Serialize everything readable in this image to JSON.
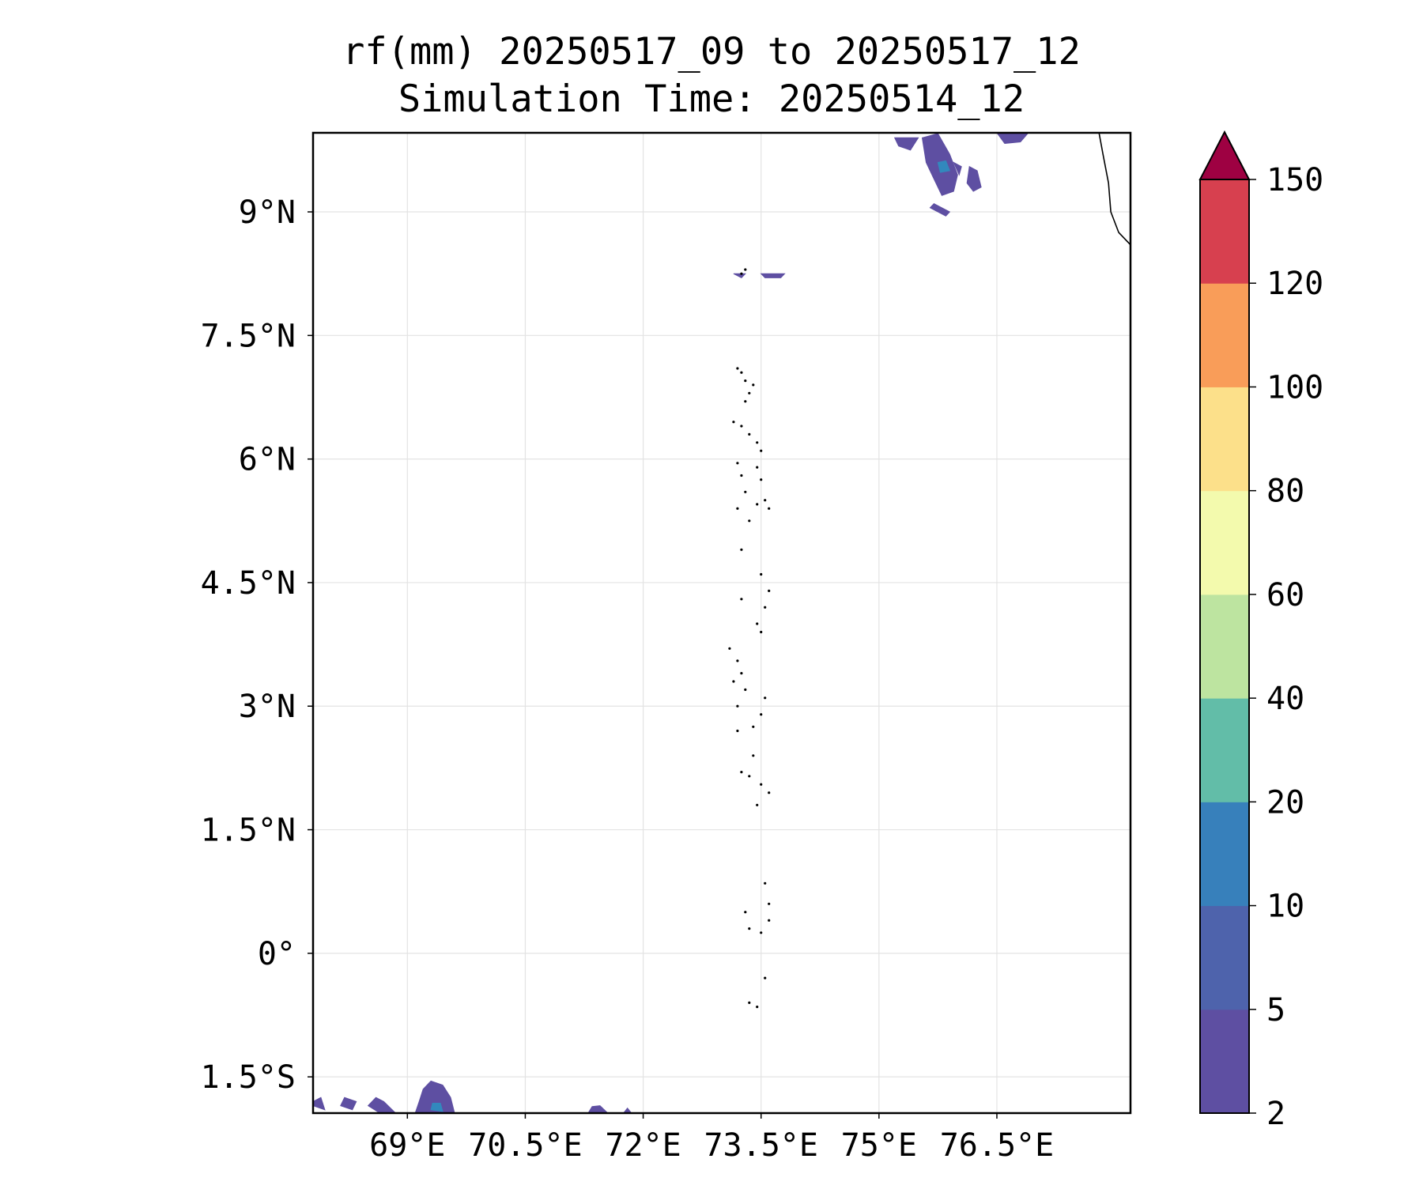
{
  "title": {
    "line1": "rf(mm) 20250517_09 to 20250517_12",
    "line2": "Simulation Time: 20250514_12"
  },
  "map": {
    "lon_range": [
      67.8,
      78.2
    ],
    "lat_range": [
      -1.94,
      9.96
    ],
    "x_ticks": [
      {
        "value": 69,
        "label": "69°E"
      },
      {
        "value": 70.5,
        "label": "70.5°E"
      },
      {
        "value": 72,
        "label": "72°E"
      },
      {
        "value": 73.5,
        "label": "73.5°E"
      },
      {
        "value": 75,
        "label": "75°E"
      },
      {
        "value": 76.5,
        "label": "76.5°E"
      }
    ],
    "y_ticks": [
      {
        "value": 9,
        "label": "9°N"
      },
      {
        "value": 7.5,
        "label": "7.5°N"
      },
      {
        "value": 6,
        "label": "6°N"
      },
      {
        "value": 4.5,
        "label": "4.5°N"
      },
      {
        "value": 3,
        "label": "3°N"
      },
      {
        "value": 1.5,
        "label": "1.5°N"
      },
      {
        "value": 0,
        "label": "0°"
      },
      {
        "value": -1.5,
        "label": "1.5°S"
      }
    ],
    "gridlines": true,
    "coastline_india": [
      [
        77.8,
        9.96
      ],
      [
        77.85,
        9.7
      ],
      [
        77.92,
        9.35
      ],
      [
        77.95,
        9.0
      ],
      [
        78.05,
        8.75
      ],
      [
        78.25,
        8.55
      ],
      [
        78.5,
        8.4
      ],
      [
        78.8,
        8.25
      ],
      [
        79.1,
        8.15
      ],
      [
        79.3,
        8.1
      ],
      [
        79.5,
        8.13
      ],
      [
        79.75,
        8.2
      ],
      [
        79.9,
        8.3
      ],
      [
        80.1,
        8.5
      ]
    ],
    "islands": [
      [
        73.25,
        8.25
      ],
      [
        73.3,
        8.3
      ],
      [
        73.2,
        7.1
      ],
      [
        73.25,
        7.05
      ],
      [
        73.3,
        6.95
      ],
      [
        73.4,
        6.9
      ],
      [
        73.35,
        6.8
      ],
      [
        73.3,
        6.7
      ],
      [
        73.15,
        6.45
      ],
      [
        73.25,
        6.4
      ],
      [
        73.35,
        6.3
      ],
      [
        73.45,
        6.2
      ],
      [
        73.5,
        6.1
      ],
      [
        73.2,
        5.95
      ],
      [
        73.25,
        5.8
      ],
      [
        73.3,
        5.6
      ],
      [
        73.45,
        5.9
      ],
      [
        73.5,
        5.75
      ],
      [
        73.55,
        5.5
      ],
      [
        73.45,
        5.45
      ],
      [
        73.6,
        5.4
      ],
      [
        73.2,
        5.4
      ],
      [
        73.35,
        5.25
      ],
      [
        73.25,
        4.9
      ],
      [
        73.5,
        4.6
      ],
      [
        73.6,
        4.4
      ],
      [
        73.55,
        4.2
      ],
      [
        73.45,
        4.0
      ],
      [
        73.5,
        3.9
      ],
      [
        73.25,
        4.3
      ],
      [
        73.1,
        3.7
      ],
      [
        73.2,
        3.55
      ],
      [
        73.25,
        3.4
      ],
      [
        73.15,
        3.3
      ],
      [
        73.3,
        3.2
      ],
      [
        73.2,
        3.0
      ],
      [
        73.55,
        3.1
      ],
      [
        73.5,
        2.9
      ],
      [
        73.4,
        2.75
      ],
      [
        73.2,
        2.7
      ],
      [
        73.4,
        2.4
      ],
      [
        73.25,
        2.2
      ],
      [
        73.35,
        2.15
      ],
      [
        73.5,
        2.05
      ],
      [
        73.6,
        1.95
      ],
      [
        73.45,
        1.8
      ],
      [
        73.55,
        0.85
      ],
      [
        73.6,
        0.6
      ],
      [
        73.3,
        0.5
      ],
      [
        73.35,
        0.3
      ],
      [
        73.5,
        0.25
      ],
      [
        73.6,
        0.4
      ],
      [
        73.55,
        -0.3
      ],
      [
        73.35,
        -0.6
      ],
      [
        73.45,
        -0.65
      ]
    ],
    "rain_patches": [
      {
        "points": [
          [
            75.55,
            9.9
          ],
          [
            75.75,
            9.95
          ],
          [
            75.9,
            9.7
          ],
          [
            76.0,
            9.45
          ],
          [
            75.95,
            9.25
          ],
          [
            75.8,
            9.2
          ],
          [
            75.7,
            9.4
          ],
          [
            75.6,
            9.6
          ]
        ],
        "color": "#5e4fa2"
      },
      {
        "points": [
          [
            75.75,
            9.6
          ],
          [
            75.85,
            9.62
          ],
          [
            75.9,
            9.5
          ],
          [
            75.78,
            9.48
          ]
        ],
        "color": "#3288bd"
      },
      {
        "points": [
          [
            76.15,
            9.55
          ],
          [
            76.25,
            9.5
          ],
          [
            76.3,
            9.3
          ],
          [
            76.2,
            9.25
          ],
          [
            76.12,
            9.35
          ]
        ],
        "color": "#5e4fa2"
      },
      {
        "points": [
          [
            75.2,
            9.9
          ],
          [
            75.5,
            9.9
          ],
          [
            75.4,
            9.75
          ],
          [
            75.25,
            9.8
          ]
        ],
        "color": "#5e4fa2"
      },
      {
        "points": [
          [
            75.65,
            9.05
          ],
          [
            75.85,
            8.95
          ],
          [
            75.9,
            9.0
          ],
          [
            75.7,
            9.1
          ]
        ],
        "color": "#5e4fa2"
      },
      {
        "points": [
          [
            76.5,
            9.96
          ],
          [
            76.9,
            9.96
          ],
          [
            76.8,
            9.85
          ],
          [
            76.6,
            9.83
          ]
        ],
        "color": "#5e4fa2"
      },
      {
        "points": [
          [
            75.95,
            9.6
          ],
          [
            76.05,
            9.55
          ],
          [
            76.02,
            9.45
          ]
        ],
        "color": "#5e4fa2"
      },
      {
        "points": [
          [
            73.15,
            8.25
          ],
          [
            73.3,
            8.25
          ],
          [
            73.25,
            8.2
          ]
        ],
        "color": "#5e4fa2"
      },
      {
        "points": [
          [
            73.5,
            8.25
          ],
          [
            73.8,
            8.25
          ],
          [
            73.75,
            8.2
          ],
          [
            73.55,
            8.2
          ]
        ],
        "color": "#5e4fa2"
      },
      {
        "points": [
          [
            67.8,
            -1.85
          ],
          [
            67.95,
            -1.9
          ],
          [
            67.9,
            -1.75
          ],
          [
            67.8,
            -1.8
          ]
        ],
        "color": "#5e4fa2"
      },
      {
        "points": [
          [
            68.15,
            -1.85
          ],
          [
            68.3,
            -1.9
          ],
          [
            68.35,
            -1.8
          ],
          [
            68.2,
            -1.75
          ]
        ],
        "color": "#5e4fa2"
      },
      {
        "points": [
          [
            68.5,
            -1.85
          ],
          [
            68.65,
            -1.94
          ],
          [
            68.85,
            -1.94
          ],
          [
            68.7,
            -1.8
          ],
          [
            68.6,
            -1.75
          ]
        ],
        "color": "#5e4fa2"
      },
      {
        "points": [
          [
            69.1,
            -1.94
          ],
          [
            69.6,
            -1.94
          ],
          [
            69.55,
            -1.75
          ],
          [
            69.45,
            -1.6
          ],
          [
            69.3,
            -1.55
          ],
          [
            69.2,
            -1.65
          ],
          [
            69.15,
            -1.8
          ]
        ],
        "color": "#5e4fa2"
      },
      {
        "points": [
          [
            69.3,
            -1.9
          ],
          [
            69.45,
            -1.92
          ],
          [
            69.42,
            -1.82
          ],
          [
            69.32,
            -1.82
          ]
        ],
        "color": "#3288bd"
      },
      {
        "points": [
          [
            71.3,
            -1.94
          ],
          [
            71.55,
            -1.94
          ],
          [
            71.45,
            -1.85
          ],
          [
            71.35,
            -1.86
          ]
        ],
        "color": "#5e4fa2"
      },
      {
        "points": [
          [
            71.75,
            -1.94
          ],
          [
            71.85,
            -1.94
          ],
          [
            71.8,
            -1.88
          ]
        ],
        "color": "#5e4fa2"
      }
    ]
  },
  "colorbar": {
    "levels": [
      "2",
      "5",
      "10",
      "20",
      "40",
      "60",
      "80",
      "100",
      "120",
      "150"
    ],
    "colors": [
      "#5e4fa2",
      "#4e63ac",
      "#3780bb",
      "#62bda8",
      "#bde4a0",
      "#f3faad",
      "#fce08a",
      "#f99d59",
      "#d7404f"
    ],
    "extend_color": "#9e0142"
  }
}
